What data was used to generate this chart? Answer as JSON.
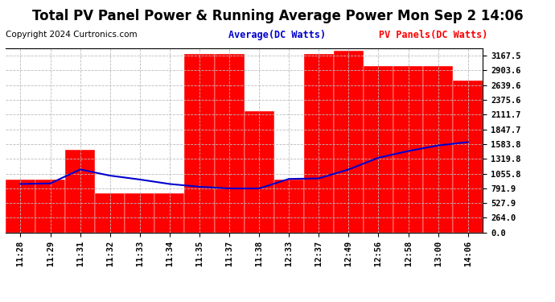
{
  "title": "Total PV Panel Power & Running Average Power Mon Sep 2 14:06",
  "copyright": "Copyright 2024 Curtronics.com",
  "legend_avg": "Average(DC Watts)",
  "legend_pv": "PV Panels(DC Watts)",
  "x_labels": [
    "11:28",
    "11:29",
    "11:31",
    "11:32",
    "11:33",
    "11:34",
    "11:35",
    "11:37",
    "11:38",
    "12:33",
    "12:37",
    "12:49",
    "12:56",
    "12:58",
    "13:00",
    "14:06"
  ],
  "bar_values": [
    950,
    950,
    1480,
    700,
    700,
    700,
    3200,
    3200,
    2180,
    950,
    3200,
    3250,
    2980,
    2980,
    2980,
    2730
  ],
  "avg_values": [
    870,
    880,
    1130,
    1020,
    950,
    870,
    820,
    790,
    790,
    960,
    970,
    1130,
    1340,
    1460,
    1560,
    1620
  ],
  "y_ticks": [
    0.0,
    264.0,
    527.9,
    791.9,
    1055.8,
    1319.8,
    1583.8,
    1847.7,
    2111.7,
    2375.6,
    2639.6,
    2903.6,
    3167.5
  ],
  "y_max": 3300,
  "bar_color": "#ff0000",
  "avg_line_color": "#0000cd",
  "bg_color": "#ffffff",
  "plot_bg_color": "#ffffff",
  "title_fontsize": 12,
  "copyright_fontsize": 7.5,
  "legend_fontsize": 8.5,
  "tick_fontsize": 7.5,
  "grid_color": "#bbbbbb",
  "bar_edge_color": "#ffffff"
}
